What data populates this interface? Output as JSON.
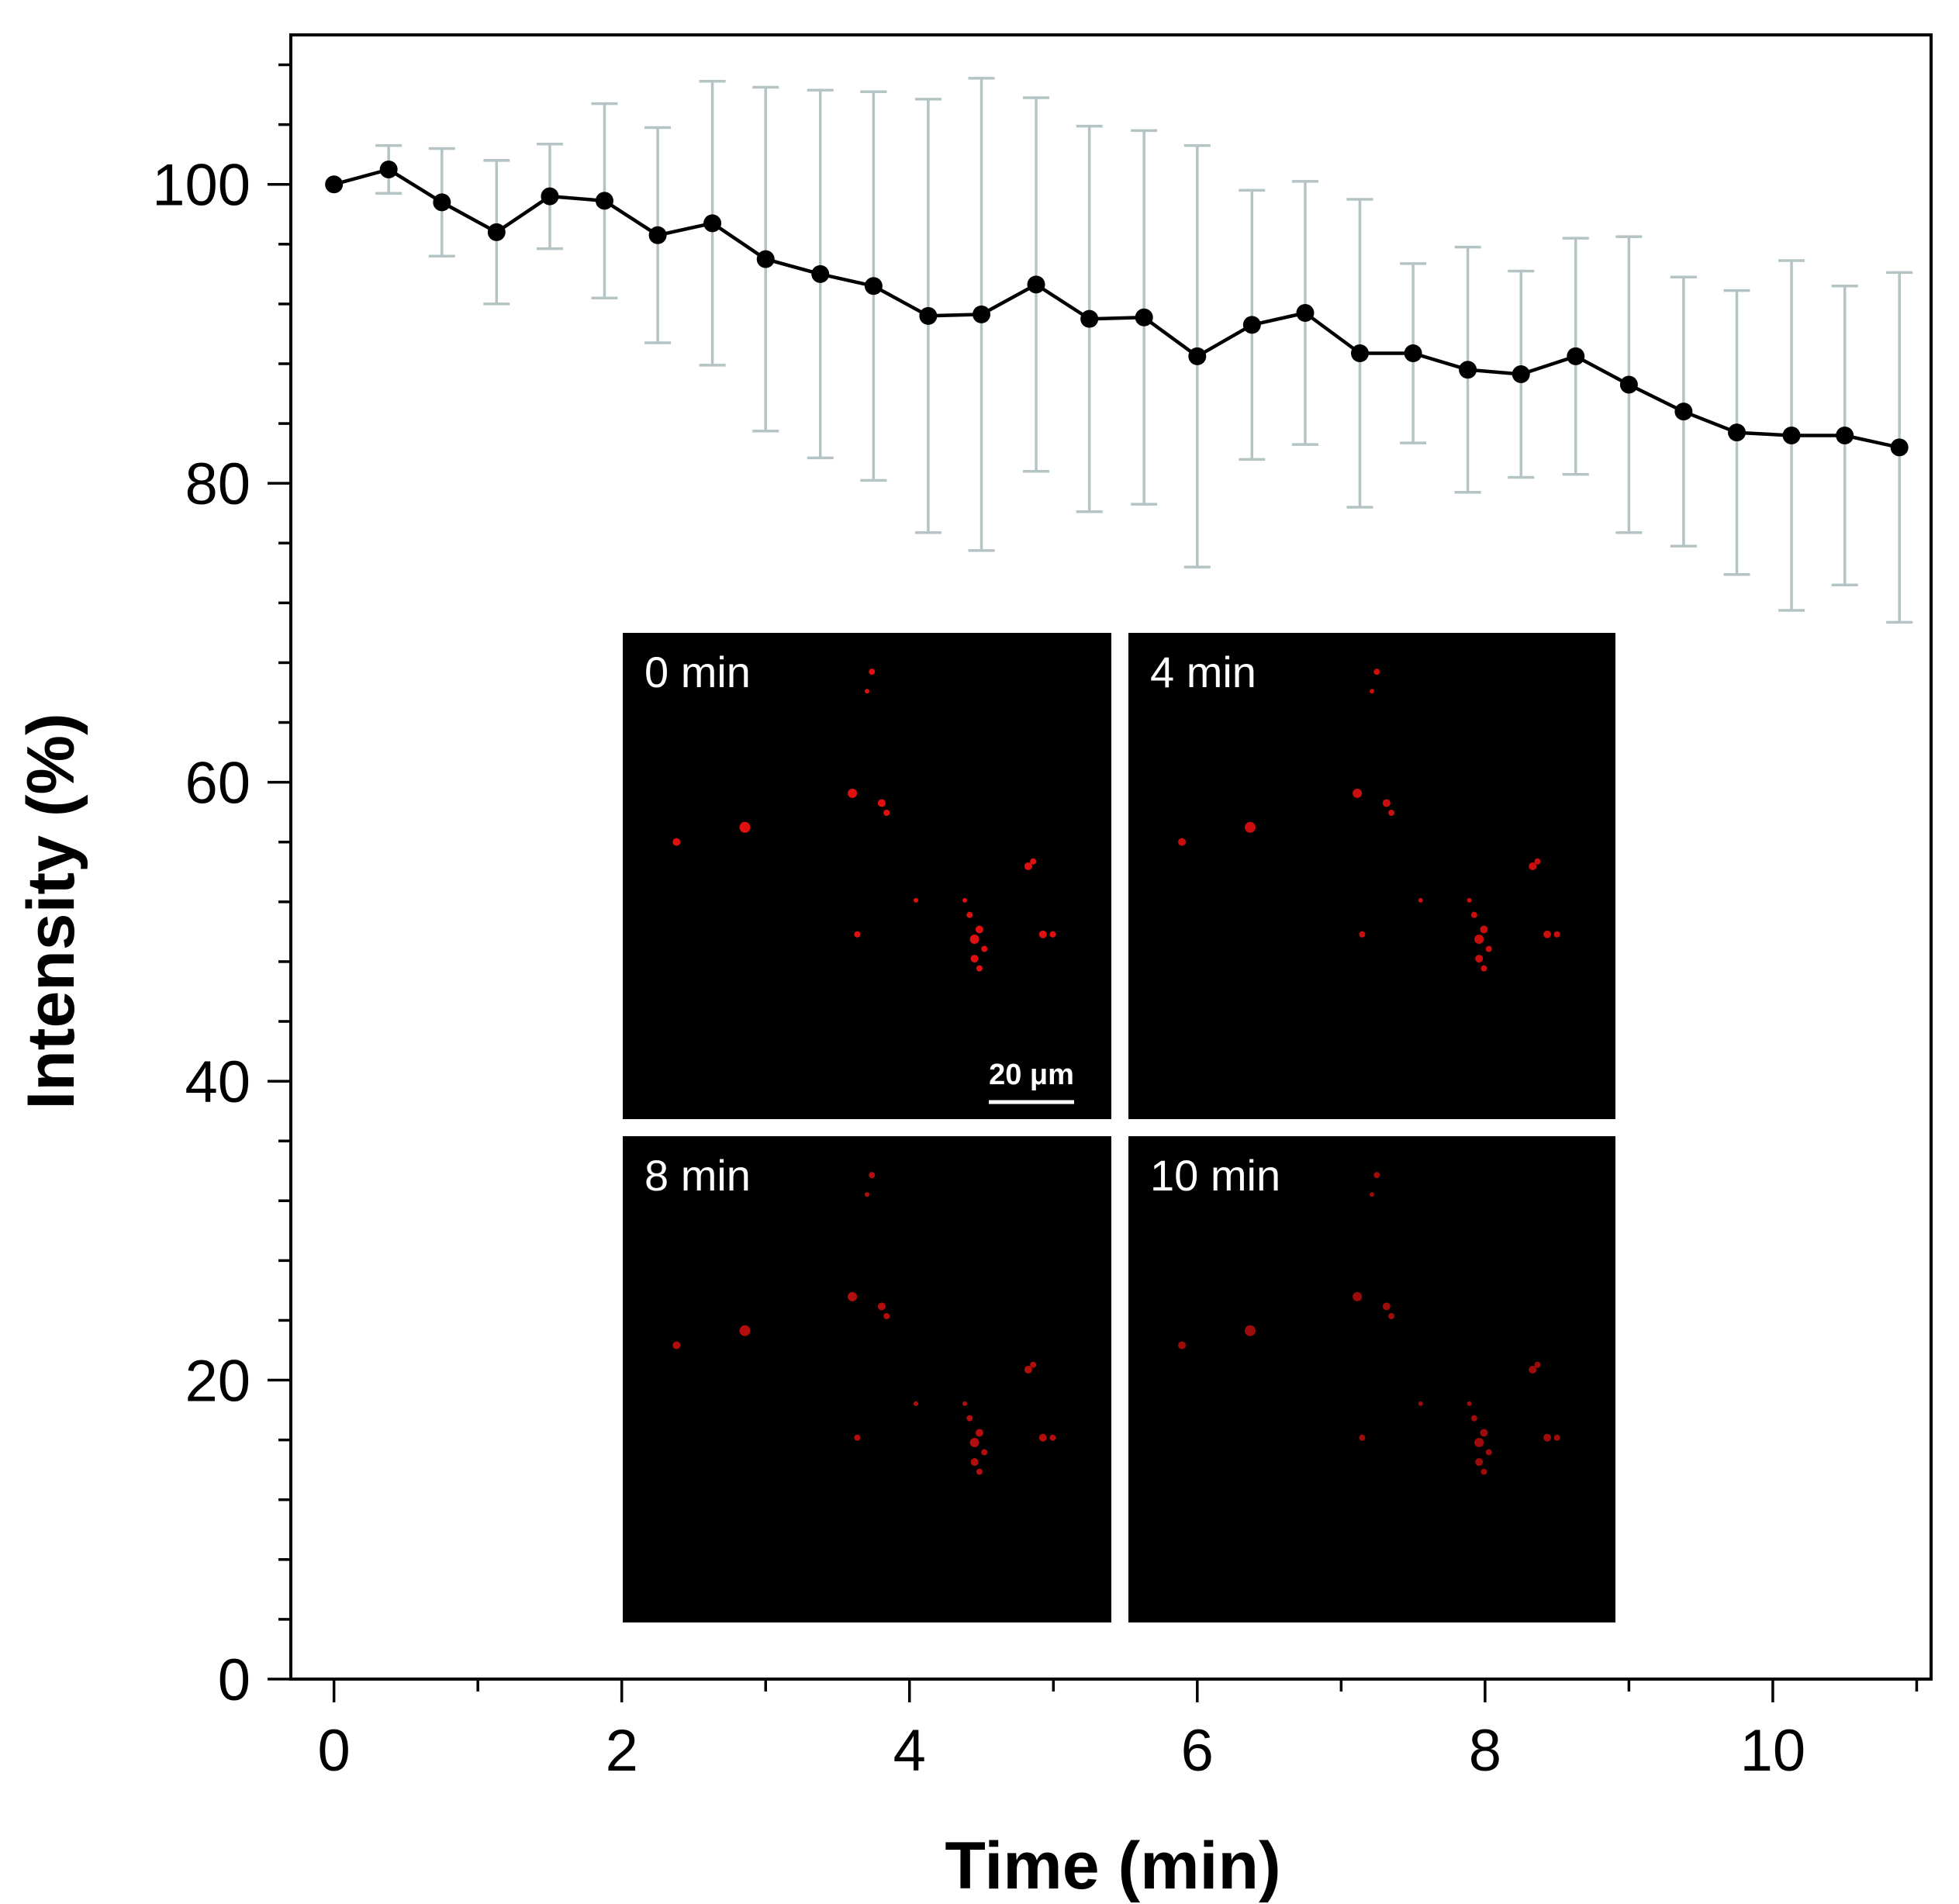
{
  "chart_data": {
    "type": "line",
    "title": "",
    "xlabel": "Time (min)",
    "ylabel": "Intensity (%)",
    "xlim": [
      -0.3,
      11.1
    ],
    "ylim": [
      0,
      110
    ],
    "xticks": [
      0,
      2,
      4,
      6,
      8,
      10
    ],
    "yticks": [
      0,
      20,
      40,
      60,
      80,
      100
    ],
    "grid": false,
    "series": [
      {
        "name": "Intensity",
        "color": "#000000",
        "errorbar_color": "#b4c3c3",
        "x": [
          0,
          0.38,
          0.75,
          1.13,
          1.5,
          1.88,
          2.25,
          2.63,
          3.0,
          3.38,
          3.75,
          4.13,
          4.5,
          4.88,
          5.25,
          5.63,
          6.0,
          6.38,
          6.75,
          7.13,
          7.5,
          7.88,
          8.25,
          8.63,
          9.0,
          9.38,
          9.75,
          10.13,
          10.5,
          10.88
        ],
        "y": [
          100,
          101,
          98.8,
          96.8,
          99.2,
          98.9,
          96.6,
          97.4,
          95.0,
          94.0,
          93.2,
          91.2,
          91.3,
          93.3,
          91.0,
          91.1,
          88.5,
          90.6,
          91.4,
          88.7,
          88.7,
          87.6,
          87.3,
          88.5,
          86.6,
          84.8,
          83.4,
          83.2,
          83.2,
          82.4
        ],
        "error": [
          0,
          1.6,
          3.6,
          4.8,
          3.5,
          6.5,
          7.2,
          9.5,
          11.5,
          12.3,
          13.0,
          14.5,
          15.8,
          12.5,
          12.9,
          12.5,
          14.1,
          9.0,
          8.8,
          10.3,
          6.0,
          8.2,
          6.9,
          7.9,
          9.9,
          9.0,
          9.5,
          11.7,
          10.0,
          11.7
        ]
      }
    ],
    "inset_panels": [
      {
        "label": "0 min",
        "scale_bar": "20 μm"
      },
      {
        "label": "4 min"
      },
      {
        "label": "8 min"
      },
      {
        "label": "10 min"
      }
    ]
  }
}
